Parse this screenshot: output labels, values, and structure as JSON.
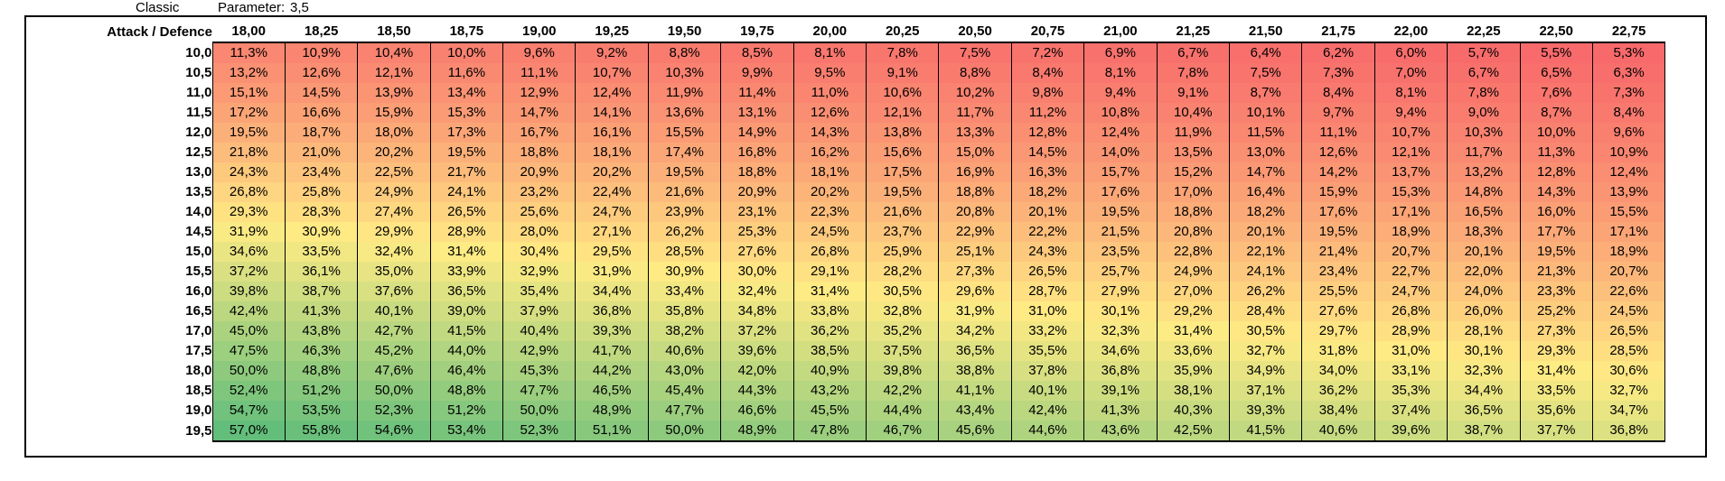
{
  "header": {
    "sheet_name": "Classic",
    "param_label": "Parameter:",
    "param_value": "3,5"
  },
  "table": {
    "corner_label": "Attack / Defence",
    "columns": [
      "18,00",
      "18,25",
      "18,50",
      "18,75",
      "19,00",
      "19,25",
      "19,50",
      "19,75",
      "20,00",
      "20,25",
      "20,50",
      "20,75",
      "21,00",
      "21,25",
      "21,50",
      "21,75",
      "22,00",
      "22,25",
      "22,50",
      "22,75"
    ],
    "rows": [
      {
        "label": "10,0",
        "values": [
          "11,3%",
          "10,9%",
          "10,4%",
          "10,0%",
          "9,6%",
          "9,2%",
          "8,8%",
          "8,5%",
          "8,1%",
          "7,8%",
          "7,5%",
          "7,2%",
          "6,9%",
          "6,7%",
          "6,4%",
          "6,2%",
          "6,0%",
          "5,7%",
          "5,5%",
          "5,3%"
        ]
      },
      {
        "label": "10,5",
        "values": [
          "13,2%",
          "12,6%",
          "12,1%",
          "11,6%",
          "11,1%",
          "10,7%",
          "10,3%",
          "9,9%",
          "9,5%",
          "9,1%",
          "8,8%",
          "8,4%",
          "8,1%",
          "7,8%",
          "7,5%",
          "7,3%",
          "7,0%",
          "6,7%",
          "6,5%",
          "6,3%"
        ]
      },
      {
        "label": "11,0",
        "values": [
          "15,1%",
          "14,5%",
          "13,9%",
          "13,4%",
          "12,9%",
          "12,4%",
          "11,9%",
          "11,4%",
          "11,0%",
          "10,6%",
          "10,2%",
          "9,8%",
          "9,4%",
          "9,1%",
          "8,7%",
          "8,4%",
          "8,1%",
          "7,8%",
          "7,6%",
          "7,3%"
        ]
      },
      {
        "label": "11,5",
        "values": [
          "17,2%",
          "16,6%",
          "15,9%",
          "15,3%",
          "14,7%",
          "14,1%",
          "13,6%",
          "13,1%",
          "12,6%",
          "12,1%",
          "11,7%",
          "11,2%",
          "10,8%",
          "10,4%",
          "10,1%",
          "9,7%",
          "9,4%",
          "9,0%",
          "8,7%",
          "8,4%"
        ]
      },
      {
        "label": "12,0",
        "values": [
          "19,5%",
          "18,7%",
          "18,0%",
          "17,3%",
          "16,7%",
          "16,1%",
          "15,5%",
          "14,9%",
          "14,3%",
          "13,8%",
          "13,3%",
          "12,8%",
          "12,4%",
          "11,9%",
          "11,5%",
          "11,1%",
          "10,7%",
          "10,3%",
          "10,0%",
          "9,6%"
        ]
      },
      {
        "label": "12,5",
        "values": [
          "21,8%",
          "21,0%",
          "20,2%",
          "19,5%",
          "18,8%",
          "18,1%",
          "17,4%",
          "16,8%",
          "16,2%",
          "15,6%",
          "15,0%",
          "14,5%",
          "14,0%",
          "13,5%",
          "13,0%",
          "12,6%",
          "12,1%",
          "11,7%",
          "11,3%",
          "10,9%"
        ]
      },
      {
        "label": "13,0",
        "values": [
          "24,3%",
          "23,4%",
          "22,5%",
          "21,7%",
          "20,9%",
          "20,2%",
          "19,5%",
          "18,8%",
          "18,1%",
          "17,5%",
          "16,9%",
          "16,3%",
          "15,7%",
          "15,2%",
          "14,7%",
          "14,2%",
          "13,7%",
          "13,2%",
          "12,8%",
          "12,4%"
        ]
      },
      {
        "label": "13,5",
        "values": [
          "26,8%",
          "25,8%",
          "24,9%",
          "24,1%",
          "23,2%",
          "22,4%",
          "21,6%",
          "20,9%",
          "20,2%",
          "19,5%",
          "18,8%",
          "18,2%",
          "17,6%",
          "17,0%",
          "16,4%",
          "15,9%",
          "15,3%",
          "14,8%",
          "14,3%",
          "13,9%"
        ]
      },
      {
        "label": "14,0",
        "values": [
          "29,3%",
          "28,3%",
          "27,4%",
          "26,5%",
          "25,6%",
          "24,7%",
          "23,9%",
          "23,1%",
          "22,3%",
          "21,6%",
          "20,8%",
          "20,1%",
          "19,5%",
          "18,8%",
          "18,2%",
          "17,6%",
          "17,1%",
          "16,5%",
          "16,0%",
          "15,5%"
        ]
      },
      {
        "label": "14,5",
        "values": [
          "31,9%",
          "30,9%",
          "29,9%",
          "28,9%",
          "28,0%",
          "27,1%",
          "26,2%",
          "25,3%",
          "24,5%",
          "23,7%",
          "22,9%",
          "22,2%",
          "21,5%",
          "20,8%",
          "20,1%",
          "19,5%",
          "18,9%",
          "18,3%",
          "17,7%",
          "17,1%"
        ]
      },
      {
        "label": "15,0",
        "values": [
          "34,6%",
          "33,5%",
          "32,4%",
          "31,4%",
          "30,4%",
          "29,5%",
          "28,5%",
          "27,6%",
          "26,8%",
          "25,9%",
          "25,1%",
          "24,3%",
          "23,5%",
          "22,8%",
          "22,1%",
          "21,4%",
          "20,7%",
          "20,1%",
          "19,5%",
          "18,9%"
        ]
      },
      {
        "label": "15,5",
        "values": [
          "37,2%",
          "36,1%",
          "35,0%",
          "33,9%",
          "32,9%",
          "31,9%",
          "30,9%",
          "30,0%",
          "29,1%",
          "28,2%",
          "27,3%",
          "26,5%",
          "25,7%",
          "24,9%",
          "24,1%",
          "23,4%",
          "22,7%",
          "22,0%",
          "21,3%",
          "20,7%"
        ]
      },
      {
        "label": "16,0",
        "values": [
          "39,8%",
          "38,7%",
          "37,6%",
          "36,5%",
          "35,4%",
          "34,4%",
          "33,4%",
          "32,4%",
          "31,4%",
          "30,5%",
          "29,6%",
          "28,7%",
          "27,9%",
          "27,0%",
          "26,2%",
          "25,5%",
          "24,7%",
          "24,0%",
          "23,3%",
          "22,6%"
        ]
      },
      {
        "label": "16,5",
        "values": [
          "42,4%",
          "41,3%",
          "40,1%",
          "39,0%",
          "37,9%",
          "36,8%",
          "35,8%",
          "34,8%",
          "33,8%",
          "32,8%",
          "31,9%",
          "31,0%",
          "30,1%",
          "29,2%",
          "28,4%",
          "27,6%",
          "26,8%",
          "26,0%",
          "25,2%",
          "24,5%"
        ]
      },
      {
        "label": "17,0",
        "values": [
          "45,0%",
          "43,8%",
          "42,7%",
          "41,5%",
          "40,4%",
          "39,3%",
          "38,2%",
          "37,2%",
          "36,2%",
          "35,2%",
          "34,2%",
          "33,2%",
          "32,3%",
          "31,4%",
          "30,5%",
          "29,7%",
          "28,9%",
          "28,1%",
          "27,3%",
          "26,5%"
        ]
      },
      {
        "label": "17,5",
        "values": [
          "47,5%",
          "46,3%",
          "45,2%",
          "44,0%",
          "42,9%",
          "41,7%",
          "40,6%",
          "39,6%",
          "38,5%",
          "37,5%",
          "36,5%",
          "35,5%",
          "34,6%",
          "33,6%",
          "32,7%",
          "31,8%",
          "31,0%",
          "30,1%",
          "29,3%",
          "28,5%"
        ]
      },
      {
        "label": "18,0",
        "values": [
          "50,0%",
          "48,8%",
          "47,6%",
          "46,4%",
          "45,3%",
          "44,2%",
          "43,0%",
          "42,0%",
          "40,9%",
          "39,8%",
          "38,8%",
          "37,8%",
          "36,8%",
          "35,9%",
          "34,9%",
          "34,0%",
          "33,1%",
          "32,3%",
          "31,4%",
          "30,6%"
        ]
      },
      {
        "label": "18,5",
        "values": [
          "52,4%",
          "51,2%",
          "50,0%",
          "48,8%",
          "47,7%",
          "46,5%",
          "45,4%",
          "44,3%",
          "43,2%",
          "42,2%",
          "41,1%",
          "40,1%",
          "39,1%",
          "38,1%",
          "37,1%",
          "36,2%",
          "35,3%",
          "34,4%",
          "33,5%",
          "32,7%"
        ]
      },
      {
        "label": "19,0",
        "values": [
          "54,7%",
          "53,5%",
          "52,3%",
          "51,2%",
          "50,0%",
          "48,9%",
          "47,7%",
          "46,6%",
          "45,5%",
          "44,4%",
          "43,4%",
          "42,4%",
          "41,3%",
          "40,3%",
          "39,3%",
          "38,4%",
          "37,4%",
          "36,5%",
          "35,6%",
          "34,7%"
        ]
      },
      {
        "label": "19,5",
        "values": [
          "57,0%",
          "55,8%",
          "54,6%",
          "53,4%",
          "52,3%",
          "51,1%",
          "50,0%",
          "48,9%",
          "47,8%",
          "46,7%",
          "45,6%",
          "44,6%",
          "43,6%",
          "42,5%",
          "41,5%",
          "40,6%",
          "39,6%",
          "38,7%",
          "37,7%",
          "36,8%"
        ]
      }
    ]
  },
  "colors": {
    "low": "#f8696b",
    "mid": "#ffeb84",
    "high": "#63be7b"
  }
}
